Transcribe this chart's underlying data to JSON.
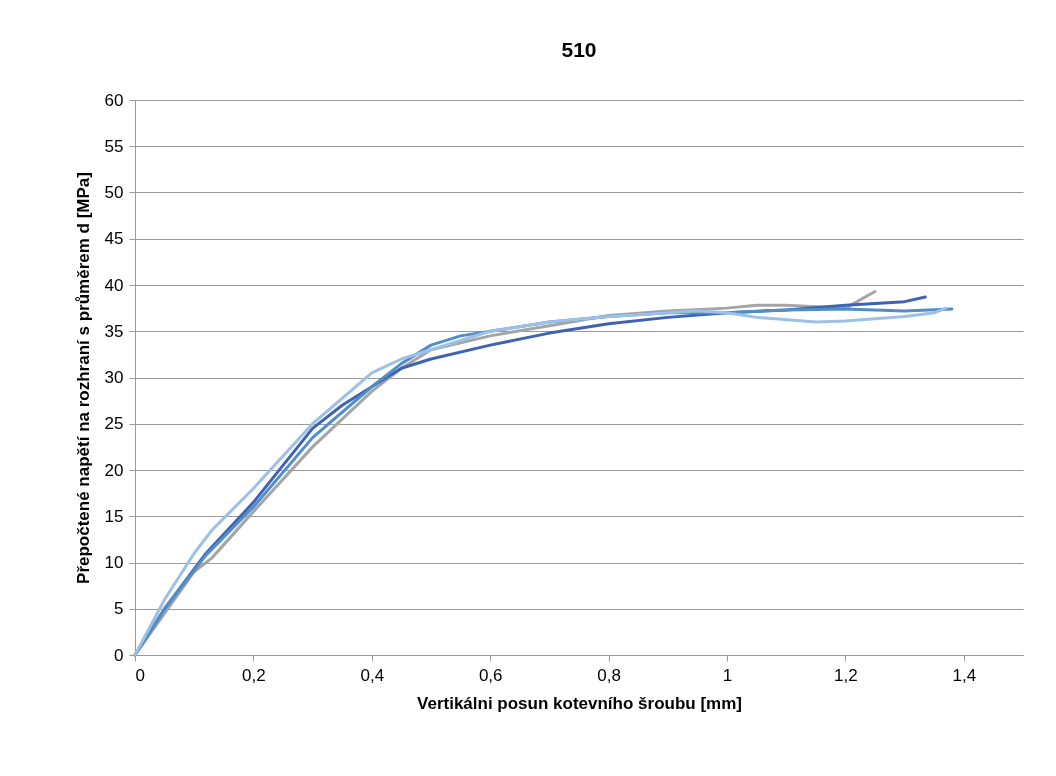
{
  "chart_data": {
    "type": "line",
    "title": "510",
    "xlabel": "Vertikálni posun kotevního šroubu [mm]",
    "ylabel": "Přepočtené napětí na rozhraní s průměrem d  [MPa]",
    "xlim": [
      0,
      1.5
    ],
    "xticks": [
      0,
      {
        "value": 0.2,
        "label": "0,2"
      },
      {
        "value": 0.4,
        "label": "0,4"
      },
      {
        "value": 0.6,
        "label": "0,6"
      },
      {
        "value": 0.8,
        "label": "0,8"
      },
      1,
      {
        "value": 1.2,
        "label": "1,2"
      },
      {
        "value": 1.4,
        "label": "1,4"
      }
    ],
    "ylim": [
      0,
      60
    ],
    "yticks": [
      0,
      5,
      10,
      15,
      20,
      25,
      30,
      35,
      40,
      45,
      50,
      55,
      60
    ],
    "grid": "y",
    "legend": false,
    "line_style": "solid",
    "marker": "none",
    "series": [
      {
        "color": "#a5a5a5",
        "x": [
          0,
          0.05,
          0.1,
          0.13,
          0.2,
          0.3,
          0.4,
          0.45,
          0.5,
          0.6,
          0.7,
          0.8,
          0.9,
          1.0,
          1.05,
          1.1,
          1.2,
          1.25
        ],
        "values": [
          0,
          4.5,
          9,
          10.5,
          15.5,
          22.5,
          28.5,
          31,
          33,
          34.5,
          35.6,
          36.7,
          37.2,
          37.5,
          37.8,
          37.8,
          37.5,
          39.3
        ]
      },
      {
        "color": "#3e63b3",
        "x": [
          0,
          0.05,
          0.12,
          0.2,
          0.3,
          0.35,
          0.4,
          0.45,
          0.5,
          0.6,
          0.7,
          0.8,
          0.9,
          1.0,
          1.1,
          1.2,
          1.3,
          1.335
        ],
        "values": [
          0,
          5,
          11,
          16.5,
          24.5,
          27,
          29,
          31,
          32,
          33.5,
          34.8,
          35.8,
          36.5,
          37,
          37.3,
          37.8,
          38.2,
          38.7
        ]
      },
      {
        "color": "#4f8ec8",
        "x": [
          0,
          0.05,
          0.12,
          0.2,
          0.3,
          0.4,
          0.45,
          0.5,
          0.55,
          0.6,
          0.7,
          0.8,
          0.9,
          1.0,
          1.1,
          1.2,
          1.3,
          1.38
        ],
        "values": [
          0,
          5,
          10.8,
          16,
          23.5,
          29,
          31.5,
          33.5,
          34.5,
          35,
          36,
          36.6,
          37,
          37,
          37.3,
          37.4,
          37.2,
          37.4
        ]
      },
      {
        "color": "#9dc0e6",
        "x": [
          0,
          0.05,
          0.1,
          0.13,
          0.2,
          0.3,
          0.4,
          0.45,
          0.5,
          0.6,
          0.7,
          0.8,
          0.9,
          0.95,
          1.0,
          1.05,
          1.15,
          1.2,
          1.3,
          1.35,
          1.37
        ],
        "values": [
          0,
          6,
          11,
          13.5,
          18,
          25,
          30.5,
          32,
          33,
          35,
          36,
          36.6,
          37,
          37.2,
          37,
          36.5,
          36,
          36.1,
          36.6,
          37,
          37.5
        ]
      }
    ]
  }
}
